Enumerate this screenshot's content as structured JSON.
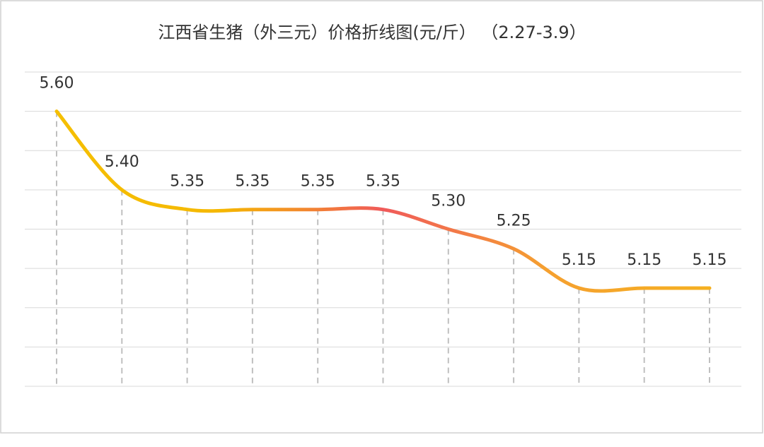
{
  "chart_data": {
    "type": "line",
    "title": "江西省生猪（外三元）价格折线图(元/斤） （2.27-3.9）",
    "categories": [
      null,
      null,
      null,
      null,
      null,
      null,
      null,
      null,
      null,
      null,
      null
    ],
    "values": [
      5.6,
      5.4,
      5.35,
      5.35,
      5.35,
      5.35,
      5.3,
      5.25,
      5.15,
      5.15,
      5.15
    ],
    "value_labels": [
      "5.60",
      "5.40",
      "5.35",
      "5.35",
      "5.35",
      "5.35",
      "5.30",
      "5.25",
      "5.15",
      "5.15",
      "5.15"
    ],
    "line_gradient": [
      "#f5bf00",
      "#f5b800",
      "#f05a5a",
      "#f5a030",
      "#f5b020"
    ],
    "ylim": [
      4.9,
      5.7
    ],
    "yticks": [
      4.9,
      5,
      5.1,
      5.2,
      5.3,
      5.4,
      5.5,
      5.6,
      5.7
    ],
    "grid": true,
    "drop_lines": true
  }
}
